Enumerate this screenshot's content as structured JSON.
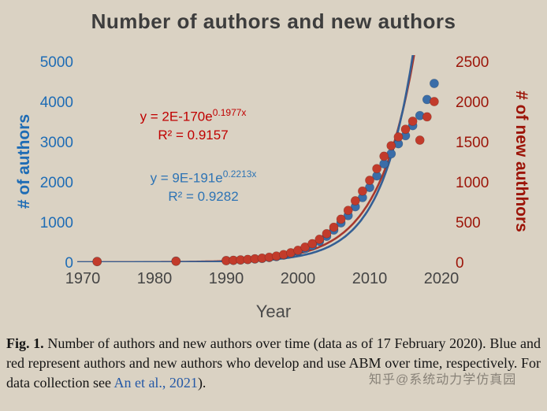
{
  "title": "Number of authors and new authors",
  "chart_data": {
    "type": "scatter",
    "title": "Number of authors and new authors",
    "xlabel": "Year",
    "ylabel_left": "# of authors",
    "ylabel_right": "# of new authhors",
    "x_ticks": [
      1970,
      1980,
      1990,
      2000,
      2010,
      2020
    ],
    "left_ticks": [
      0,
      1000,
      2000,
      3000,
      4000,
      5000
    ],
    "right_ticks": [
      0,
      500,
      1000,
      1500,
      2000,
      2500
    ],
    "xlim": [
      1968,
      2022
    ],
    "ylim_left": [
      0,
      5000
    ],
    "ylim_right": [
      0,
      2500
    ],
    "grid": false,
    "legend": "none",
    "x": [
      1972,
      1983,
      1990,
      1991,
      1992,
      1993,
      1994,
      1995,
      1996,
      1997,
      1998,
      1999,
      2000,
      2001,
      2002,
      2003,
      2004,
      2005,
      2006,
      2007,
      2008,
      2009,
      2010,
      2011,
      2012,
      2013,
      2014,
      2015,
      2016,
      2017,
      2018,
      2019
    ],
    "series": [
      {
        "name": "authors",
        "axis": "left",
        "color": "#3a6da8",
        "values": [
          15,
          25,
          40,
          45,
          55,
          65,
          80,
          95,
          115,
          140,
          175,
          215,
          270,
          340,
          415,
          520,
          645,
          800,
          980,
          1160,
          1380,
          1610,
          1860,
          2150,
          2450,
          2700,
          2950,
          3150,
          3400,
          3650,
          4050,
          4450
        ]
      },
      {
        "name": "new_authors",
        "axis": "right",
        "color": "#c23b2b",
        "values": [
          8,
          12,
          20,
          24,
          28,
          34,
          42,
          50,
          62,
          76,
          95,
          118,
          148,
          188,
          230,
          285,
          355,
          435,
          535,
          645,
          765,
          885,
          1020,
          1165,
          1320,
          1450,
          1560,
          1655,
          1755,
          1520,
          1810,
          2000
        ]
      }
    ],
    "fits": [
      {
        "name": "new_authors_fit",
        "axis": "right",
        "color": "#a8392e",
        "mantissa": 2,
        "exp10": -170,
        "b": 0.1977
      },
      {
        "name": "authors_fit",
        "axis": "left",
        "color": "#345f94",
        "mantissa": 9,
        "exp10": -191,
        "b": 0.2213
      }
    ],
    "annotations": {
      "red_eq_prefix": "y = 2E-170e",
      "red_eq_sup": "0.1977x",
      "red_r2": "R² = 0.9157",
      "blue_eq_prefix": "y = 9E-191e",
      "blue_eq_sup": "0.2213x",
      "blue_r2": "R² = 0.9282"
    }
  },
  "colors": {
    "background": "#dad2c3",
    "title_text": "#3d3d3d",
    "left_axis_text": "#1e6cb5",
    "right_axis_text": "#9c1408",
    "x_axis_text": "#454545",
    "red_equation": "#c00000",
    "blue_equation": "#2e74b5",
    "link": "#2458a6"
  },
  "caption": {
    "fig_label": "Fig. 1.",
    "text_before_link": " Number of authors and new authors over time (data as of 17 February 2020). Blue and red represent authors and new authors who develop and use ABM over time, respectively. For data collection see ",
    "link_text": "An et al., 2021",
    "text_after_link": ")."
  },
  "watermark": {
    "text": "知乎@系统动力学仿真园"
  }
}
